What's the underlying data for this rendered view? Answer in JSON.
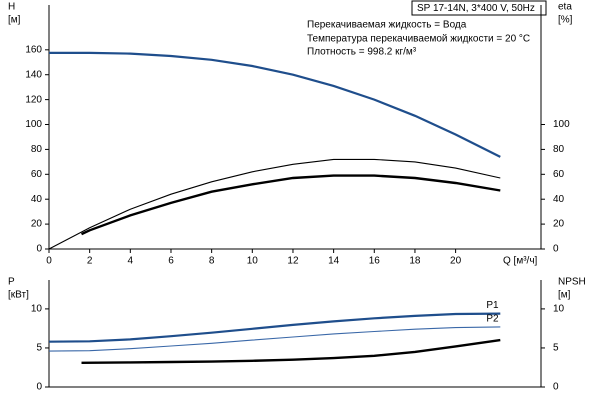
{
  "chart_data": [
    {
      "type": "line",
      "x_label": "Q [м³/ч]",
      "y_label": [
        "H",
        "[м]"
      ],
      "y2_label": [
        "eta",
        "[%]"
      ],
      "annotations": [
        "SP 17-14N, 3*400 V, 50Hz",
        "Перекачиваемая жидкость = Вода",
        "Температура перекачиваемой жидкости = 20 °C",
        "Плотность = 998.2 кг/м³"
      ],
      "xlim": [
        0,
        24.2
      ],
      "xticks": [
        0,
        2,
        4,
        6,
        8,
        10,
        12,
        14,
        16,
        18,
        20
      ],
      "ylim": [
        0,
        196
      ],
      "yticks": [
        0,
        20,
        40,
        60,
        80,
        100,
        120,
        140,
        160
      ],
      "y2lim": [
        0,
        196
      ],
      "y2ticks": [
        0,
        20,
        40,
        60,
        80,
        100
      ],
      "series": [
        {
          "color": "#1f4e8c",
          "width": 2.2,
          "x": [
            0,
            2,
            4,
            6,
            8,
            10,
            12,
            14,
            16,
            18,
            20,
            22.2
          ],
          "values": [
            157.5,
            157.5,
            157,
            155,
            152,
            147,
            140,
            131,
            120,
            107,
            92,
            74
          ]
        },
        {
          "color": "#000000",
          "width": 1.1,
          "axis": "y2",
          "x": [
            0,
            2,
            4,
            6,
            8,
            10,
            12,
            14,
            16,
            18,
            20,
            22.2
          ],
          "values": [
            0,
            17,
            32,
            44,
            54,
            62,
            68,
            72,
            72,
            70,
            65,
            57
          ]
        },
        {
          "color": "#000000",
          "width": 2.4,
          "axis": "y2",
          "x": [
            1.6,
            2,
            4,
            6,
            8,
            10,
            12,
            14,
            16,
            18,
            20,
            22.2
          ],
          "values": [
            12,
            15,
            27,
            37,
            46,
            52,
            57,
            59,
            59,
            57,
            53,
            47
          ]
        }
      ]
    },
    {
      "type": "line",
      "y_label": [
        "P",
        "[кВт]"
      ],
      "y2_label": [
        "NPSH",
        "[м]"
      ],
      "xlim": [
        0,
        24.2
      ],
      "ylim": [
        0,
        13.7
      ],
      "yticks": [
        0,
        5,
        10
      ],
      "y2lim": [
        0,
        13.7
      ],
      "y2ticks": [
        0,
        5,
        10
      ],
      "series": [
        {
          "name": "P1",
          "color": "#1f4e8c",
          "width": 2.2,
          "x": [
            0,
            2,
            4,
            6,
            8,
            10,
            12,
            14,
            16,
            18,
            20,
            22.2
          ],
          "values": [
            5.8,
            5.85,
            6.1,
            6.5,
            6.95,
            7.45,
            7.95,
            8.4,
            8.8,
            9.1,
            9.35,
            9.4
          ]
        },
        {
          "name": "P2",
          "color": "#3a68a8",
          "width": 1.1,
          "x": [
            0,
            2,
            4,
            6,
            8,
            10,
            12,
            14,
            16,
            18,
            20,
            22.2
          ],
          "values": [
            4.6,
            4.65,
            4.9,
            5.25,
            5.6,
            6.0,
            6.4,
            6.8,
            7.1,
            7.4,
            7.6,
            7.7
          ]
        },
        {
          "color": "#000000",
          "width": 2.4,
          "axis": "y2",
          "x": [
            1.6,
            4,
            6,
            8,
            10,
            12,
            14,
            16,
            18,
            20,
            22.2
          ],
          "values": [
            3.1,
            3.15,
            3.2,
            3.25,
            3.35,
            3.5,
            3.7,
            4.0,
            4.5,
            5.2,
            6.0
          ]
        }
      ]
    }
  ]
}
